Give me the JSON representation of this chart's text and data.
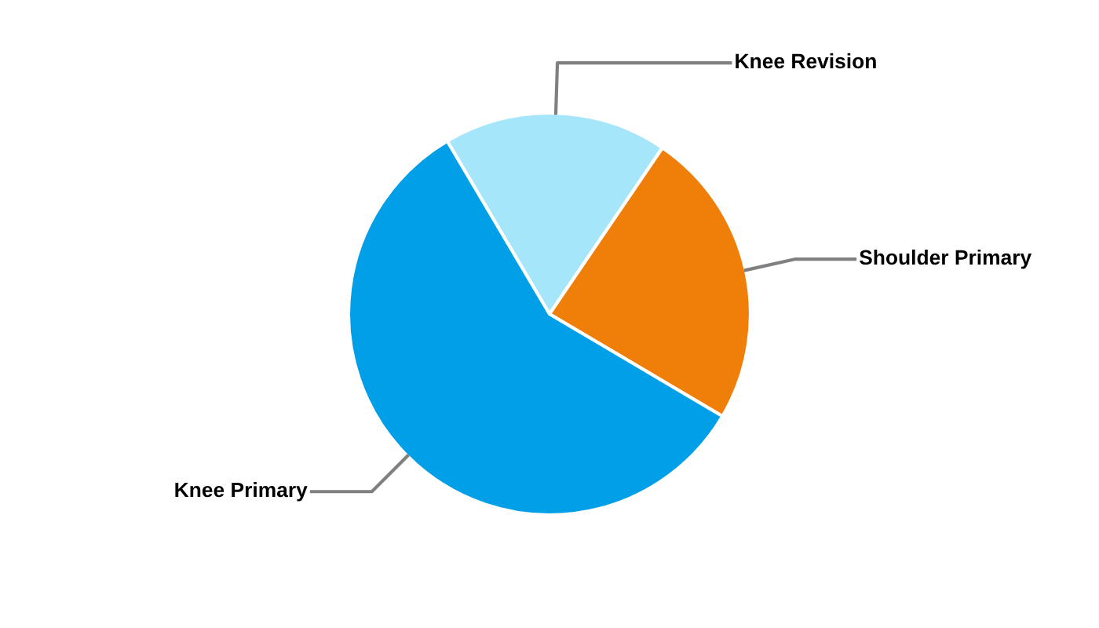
{
  "chart_data": {
    "type": "pie",
    "categories": [
      "Knee Revision",
      "Shoulder Primary",
      "Knee Primary"
    ],
    "values": [
      18,
      24,
      58
    ],
    "colors": [
      "#a5e6fb",
      "#f07f09",
      "#009fe8"
    ],
    "legend": false
  }
}
